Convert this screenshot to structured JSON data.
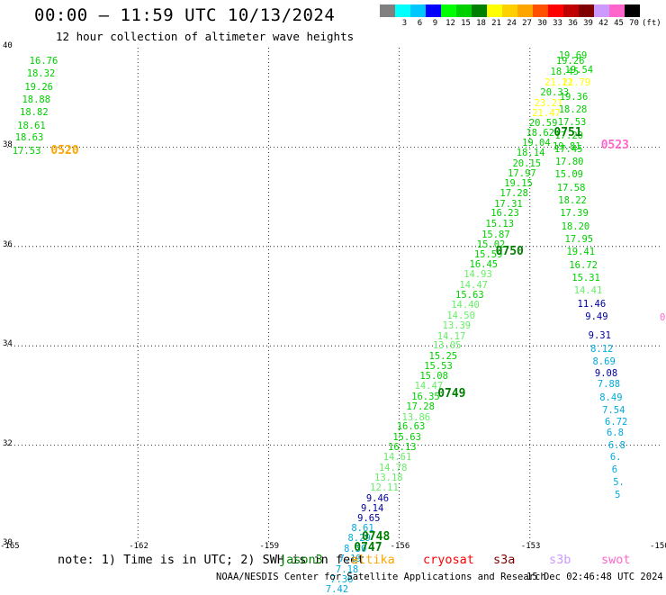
{
  "title": "00:00 – 11:59 UTC 10/13/2024",
  "subtitle": "12 hour collection of altimeter wave heights",
  "colorbar": {
    "unit": "(ft)",
    "bins": [
      {
        "label": "",
        "color": "#808080"
      },
      {
        "label": "3",
        "color": "#00ffff"
      },
      {
        "label": "6",
        "color": "#00c8ff"
      },
      {
        "label": "9",
        "color": "#0000ff"
      },
      {
        "label": "12",
        "color": "#00ff00"
      },
      {
        "label": "15",
        "color": "#00d000"
      },
      {
        "label": "18",
        "color": "#008000"
      },
      {
        "label": "21",
        "color": "#ffff00"
      },
      {
        "label": "24",
        "color": "#ffd000"
      },
      {
        "label": "27",
        "color": "#ffa500"
      },
      {
        "label": "30",
        "color": "#ff5000"
      },
      {
        "label": "33",
        "color": "#ff0000"
      },
      {
        "label": "36",
        "color": "#c00000"
      },
      {
        "label": "39",
        "color": "#800000"
      },
      {
        "label": "42",
        "color": "#cc99ff"
      },
      {
        "label": "45",
        "color": "#ff66cc"
      },
      {
        "label": "70",
        "color": "#000000"
      }
    ]
  },
  "map": {
    "lon_range": [
      -165,
      -150
    ],
    "lat_range": [
      30,
      40
    ],
    "lon_ticks": [
      "-165",
      "-162",
      "-159",
      "-156",
      "-153",
      "-150"
    ],
    "lat_ticks": [
      "30",
      "32",
      "34",
      "36",
      "38",
      "40"
    ]
  },
  "tracks": [
    {
      "points": [
        {
          "v": "16.76",
          "lon": -164.49,
          "lat": 39.73,
          "c": "#00d000"
        },
        {
          "v": "18.32",
          "lon": -164.55,
          "lat": 39.47,
          "c": "#00d000"
        },
        {
          "v": "19.26",
          "lon": -164.6,
          "lat": 39.21,
          "c": "#00d000"
        },
        {
          "v": "18.88",
          "lon": -164.66,
          "lat": 38.95,
          "c": "#00d000"
        },
        {
          "v": "18.82",
          "lon": -164.71,
          "lat": 38.69,
          "c": "#00d000"
        },
        {
          "v": "18.61",
          "lon": -164.77,
          "lat": 38.43,
          "c": "#00d000"
        },
        {
          "v": "18.63",
          "lon": -164.82,
          "lat": 38.18,
          "c": "#00d000"
        },
        {
          "v": "17.53",
          "lon": -164.88,
          "lat": 37.92,
          "c": "#00d000"
        }
      ]
    },
    {
      "points": [
        {
          "v": "19.69",
          "lon": -152.34,
          "lat": 39.83,
          "c": "#00d000"
        },
        {
          "v": "19.26",
          "lon": -152.4,
          "lat": 39.73,
          "c": "#00d000"
        },
        {
          "v": "18.45",
          "lon": -152.53,
          "lat": 39.51,
          "c": "#00d000"
        },
        {
          "v": "21.12",
          "lon": -152.66,
          "lat": 39.3,
          "c": "#ffff00"
        },
        {
          "v": "20.33",
          "lon": -152.76,
          "lat": 39.1,
          "c": "#00d000"
        },
        {
          "v": "23.21",
          "lon": -152.9,
          "lat": 38.88,
          "c": "#ffff00"
        },
        {
          "v": "21.47",
          "lon": -152.95,
          "lat": 38.68,
          "c": "#ffff00"
        },
        {
          "v": "20.59",
          "lon": -153.02,
          "lat": 38.47,
          "c": "#00d000"
        },
        {
          "v": "18.62",
          "lon": -153.09,
          "lat": 38.27,
          "c": "#00d000"
        },
        {
          "v": "19.04",
          "lon": -153.18,
          "lat": 38.08,
          "c": "#00d000"
        },
        {
          "v": "18.14",
          "lon": -153.31,
          "lat": 37.88,
          "c": "#00d000"
        },
        {
          "v": "20.15",
          "lon": -153.4,
          "lat": 37.67,
          "c": "#00d000"
        },
        {
          "v": "17.97",
          "lon": -153.51,
          "lat": 37.47,
          "c": "#00d000"
        },
        {
          "v": "19.15",
          "lon": -153.59,
          "lat": 37.26,
          "c": "#00d000"
        },
        {
          "v": "17.28",
          "lon": -153.69,
          "lat": 37.06,
          "c": "#00d000"
        },
        {
          "v": "17.31",
          "lon": -153.82,
          "lat": 36.85,
          "c": "#00d000"
        },
        {
          "v": "16.23",
          "lon": -153.9,
          "lat": 36.66,
          "c": "#00d000"
        },
        {
          "v": "15.13",
          "lon": -154.02,
          "lat": 36.45,
          "c": "#00d000"
        },
        {
          "v": "15.87",
          "lon": -154.11,
          "lat": 36.24,
          "c": "#00d000"
        },
        {
          "v": "15.02",
          "lon": -154.22,
          "lat": 36.04,
          "c": "#00d000"
        },
        {
          "v": "15.59",
          "lon": -154.28,
          "lat": 35.84,
          "c": "#00d000"
        },
        {
          "v": "16.45",
          "lon": -154.39,
          "lat": 35.63,
          "c": "#00d000"
        },
        {
          "v": "14.93",
          "lon": -154.52,
          "lat": 35.43,
          "c": "#66ee66"
        },
        {
          "v": "14.47",
          "lon": -154.62,
          "lat": 35.22,
          "c": "#66ee66"
        },
        {
          "v": "15.63",
          "lon": -154.71,
          "lat": 35.02,
          "c": "#00d000"
        },
        {
          "v": "14.40",
          "lon": -154.81,
          "lat": 34.81,
          "c": "#66ee66"
        },
        {
          "v": "14.50",
          "lon": -154.91,
          "lat": 34.6,
          "c": "#66ee66"
        },
        {
          "v": "13.39",
          "lon": -155.01,
          "lat": 34.4,
          "c": "#66ee66"
        },
        {
          "v": "14.17",
          "lon": -155.13,
          "lat": 34.19,
          "c": "#66ee66"
        },
        {
          "v": "13.05",
          "lon": -155.23,
          "lat": 34.0,
          "c": "#66ee66"
        },
        {
          "v": "15.25",
          "lon": -155.32,
          "lat": 33.79,
          "c": "#00d000"
        },
        {
          "v": "15.53",
          "lon": -155.43,
          "lat": 33.59,
          "c": "#00d000"
        },
        {
          "v": "15.08",
          "lon": -155.53,
          "lat": 33.38,
          "c": "#00d000"
        },
        {
          "v": "14.47",
          "lon": -155.65,
          "lat": 33.18,
          "c": "#66ee66"
        },
        {
          "v": "16.35",
          "lon": -155.72,
          "lat": 32.97,
          "c": "#00d000"
        },
        {
          "v": "17.28",
          "lon": -155.84,
          "lat": 32.77,
          "c": "#00d000"
        },
        {
          "v": "13.86",
          "lon": -155.94,
          "lat": 32.56,
          "c": "#66ee66"
        },
        {
          "v": "16.63",
          "lon": -156.06,
          "lat": 32.37,
          "c": "#00d000"
        },
        {
          "v": "15.63",
          "lon": -156.15,
          "lat": 32.16,
          "c": "#00d000"
        },
        {
          "v": "16.13",
          "lon": -156.26,
          "lat": 31.96,
          "c": "#00d000"
        },
        {
          "v": "14.61",
          "lon": -156.37,
          "lat": 31.75,
          "c": "#66ee66"
        },
        {
          "v": "14.78",
          "lon": -156.47,
          "lat": 31.54,
          "c": "#66ee66"
        },
        {
          "v": "13.18",
          "lon": -156.57,
          "lat": 31.34,
          "c": "#66ee66"
        },
        {
          "v": "12.11",
          "lon": -156.67,
          "lat": 31.14,
          "c": "#66ee66"
        },
        {
          "v": "9.46",
          "lon": -156.76,
          "lat": 30.93,
          "c": "#0000a0"
        },
        {
          "v": "9.14",
          "lon": -156.88,
          "lat": 30.73,
          "c": "#0000a0"
        },
        {
          "v": "9.65",
          "lon": -156.96,
          "lat": 30.52,
          "c": "#0000a0"
        },
        {
          "v": "8.61",
          "lon": -157.1,
          "lat": 30.32,
          "c": "#00aadd"
        },
        {
          "v": "8.29",
          "lon": -157.18,
          "lat": 30.12,
          "c": "#00aadd"
        },
        {
          "v": "8.30",
          "lon": -157.27,
          "lat": 29.91,
          "c": "#00aadd"
        },
        {
          "v": "7.19",
          "lon": -157.39,
          "lat": 29.71,
          "c": "#00aadd"
        },
        {
          "v": "7.18",
          "lon": -157.46,
          "lat": 29.5,
          "c": "#00aadd"
        },
        {
          "v": "7.36",
          "lon": -157.58,
          "lat": 29.3,
          "c": "#00aadd"
        },
        {
          "v": "7.42",
          "lon": -157.69,
          "lat": 29.1,
          "c": "#00aadd"
        }
      ]
    },
    {
      "points": [
        {
          "v": "19.54",
          "lon": -152.2,
          "lat": 39.55,
          "c": "#00d000"
        },
        {
          "v": "21.79",
          "lon": -152.26,
          "lat": 39.29,
          "c": "#ffff00"
        },
        {
          "v": "19.36",
          "lon": -152.32,
          "lat": 39.01,
          "c": "#00d000"
        },
        {
          "v": "18.28",
          "lon": -152.34,
          "lat": 38.75,
          "c": "#00d000"
        },
        {
          "v": "17.53",
          "lon": -152.36,
          "lat": 38.49,
          "c": "#00d000"
        },
        {
          "v": "17.20",
          "lon": -152.43,
          "lat": 38.23,
          "c": "#00d000"
        },
        {
          "v": "19.81",
          "lon": -152.48,
          "lat": 38.0,
          "c": "#00d000"
        },
        {
          "v": "17.45",
          "lon": -152.44,
          "lat": 37.96,
          "c": "#00d000"
        },
        {
          "v": "17.80",
          "lon": -152.42,
          "lat": 37.7,
          "c": "#00d000"
        },
        {
          "v": "15.09",
          "lon": -152.43,
          "lat": 37.44,
          "c": "#00d000"
        },
        {
          "v": "17.58",
          "lon": -152.38,
          "lat": 37.18,
          "c": "#00d000"
        },
        {
          "v": "18.22",
          "lon": -152.35,
          "lat": 36.92,
          "c": "#00d000"
        },
        {
          "v": "17.39",
          "lon": -152.31,
          "lat": 36.66,
          "c": "#00d000"
        },
        {
          "v": "18.20",
          "lon": -152.28,
          "lat": 36.4,
          "c": "#00d000"
        },
        {
          "v": "17.95",
          "lon": -152.2,
          "lat": 36.14,
          "c": "#00d000"
        },
        {
          "v": "19.41",
          "lon": -152.16,
          "lat": 35.88,
          "c": "#00d000"
        },
        {
          "v": "16.72",
          "lon": -152.1,
          "lat": 35.62,
          "c": "#00d000"
        },
        {
          "v": "15.31",
          "lon": -152.04,
          "lat": 35.36,
          "c": "#00d000"
        },
        {
          "v": "14.41",
          "lon": -151.99,
          "lat": 35.1,
          "c": "#66ee66"
        },
        {
          "v": "11.46",
          "lon": -151.91,
          "lat": 34.84,
          "c": "#0000a0"
        },
        {
          "v": "9.49",
          "lon": -151.73,
          "lat": 34.58,
          "c": "#0000a0"
        },
        {
          "v": "9.31",
          "lon": -151.66,
          "lat": 34.2,
          "c": "#0000a0"
        },
        {
          "v": "8.12",
          "lon": -151.61,
          "lat": 33.94,
          "c": "#00aadd"
        },
        {
          "v": "8.69",
          "lon": -151.56,
          "lat": 33.68,
          "c": "#00aadd"
        },
        {
          "v": "9.08",
          "lon": -151.51,
          "lat": 33.45,
          "c": "#0000a0"
        },
        {
          "v": "7.88",
          "lon": -151.45,
          "lat": 33.22,
          "c": "#00aadd"
        },
        {
          "v": "8.49",
          "lon": -151.4,
          "lat": 32.96,
          "c": "#00aadd"
        },
        {
          "v": "7.54",
          "lon": -151.34,
          "lat": 32.7,
          "c": "#00aadd"
        },
        {
          "v": "6.72",
          "lon": -151.28,
          "lat": 32.46,
          "c": "#00aadd"
        },
        {
          "v": "6.8",
          "lon": -151.24,
          "lat": 32.24,
          "c": "#00aadd"
        },
        {
          "v": "6.8",
          "lon": -151.2,
          "lat": 32.0,
          "c": "#00aadd"
        },
        {
          "v": "6.",
          "lon": -151.16,
          "lat": 31.76,
          "c": "#00aadd"
        },
        {
          "v": "6",
          "lon": -151.12,
          "lat": 31.5,
          "c": "#00aadd"
        },
        {
          "v": "5.",
          "lon": -151.09,
          "lat": 31.25,
          "c": "#00aadd"
        },
        {
          "v": "5",
          "lon": -151.05,
          "lat": 31.0,
          "c": "#00aadd"
        },
        {
          "v": "0",
          "lon": -150.02,
          "lat": 34.56,
          "c": "#ff66cc"
        }
      ]
    }
  ],
  "time_labels": [
    {
      "text": "0520",
      "lon": -164.0,
      "lat": 37.93,
      "c": "#ffa500"
    },
    {
      "text": "0751",
      "lon": -152.45,
      "lat": 38.3,
      "c": "#008000"
    },
    {
      "text": "0523",
      "lon": -151.37,
      "lat": 38.04,
      "c": "#ff66cc"
    },
    {
      "text": "0750",
      "lon": -153.79,
      "lat": 35.9,
      "c": "#008000"
    },
    {
      "text": "0749",
      "lon": -155.12,
      "lat": 33.04,
      "c": "#008000"
    },
    {
      "text": "0748",
      "lon": -156.86,
      "lat": 30.16,
      "c": "#008000"
    },
    {
      "text": "0747",
      "lon": -157.04,
      "lat": 29.95,
      "c": "#008000"
    }
  ],
  "note": "note: 1) Time is in UTC; 2) SWH is in feet",
  "missions": [
    {
      "label": "jason3",
      "color": "#008000"
    },
    {
      "label": "altika",
      "color": "#ffa500"
    },
    {
      "label": "cryosat",
      "color": "#ff0000"
    },
    {
      "label": "s3a",
      "color": "#800000"
    },
    {
      "label": "s3b",
      "color": "#cc99ff"
    },
    {
      "label": "swot",
      "color": "#ff66cc"
    }
  ],
  "credit": "NOAA/NESDIS Center for Satellite Applications and Research",
  "timestamp": "15 Dec 02:46:48 UTC 2024"
}
